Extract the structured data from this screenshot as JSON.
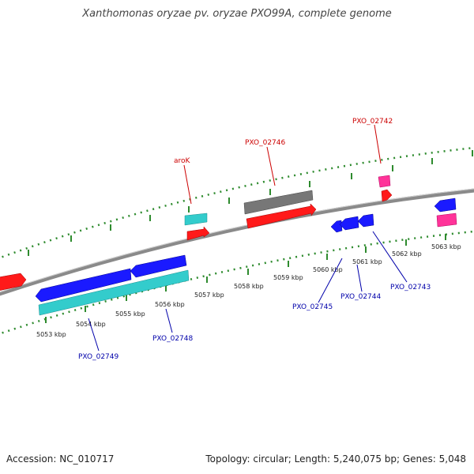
{
  "title": "Xanthomonas oryzae pv. oryzae PXO99A, complete genome",
  "footer": {
    "accession": "Accession: NC_010717",
    "stats": "Topology: circular; Length: 5,240,075 bp; Genes: 5,048"
  },
  "colors": {
    "backbone": "#8a8a8a",
    "tick": "#2e8b2e",
    "cds_forward": "#ff1a1a",
    "cds_reverse": "#1a1aff",
    "gene_forward": "#cccccc",
    "gene_reverse": "#33cccc",
    "rna": "#ff3399",
    "other": "#777777",
    "label_forward": "#cc0000",
    "label_reverse": "#0000aa"
  },
  "scale_labels": [
    "5053 kbp",
    "5054 kbp",
    "5055 kbp",
    "5056 kbp",
    "5057 kbp",
    "5058 kbp",
    "5059 kbp",
    "5060 kbp",
    "5061 kbp",
    "5062 kbp",
    "5063 kbp"
  ],
  "gene_labels": {
    "top": [
      "aroK",
      "PXO_02746",
      "PXO_02742"
    ],
    "bottom": [
      "PXO_02749",
      "PXO_02748",
      "PXO_02745",
      "PXO_02744",
      "PXO_02743"
    ]
  }
}
